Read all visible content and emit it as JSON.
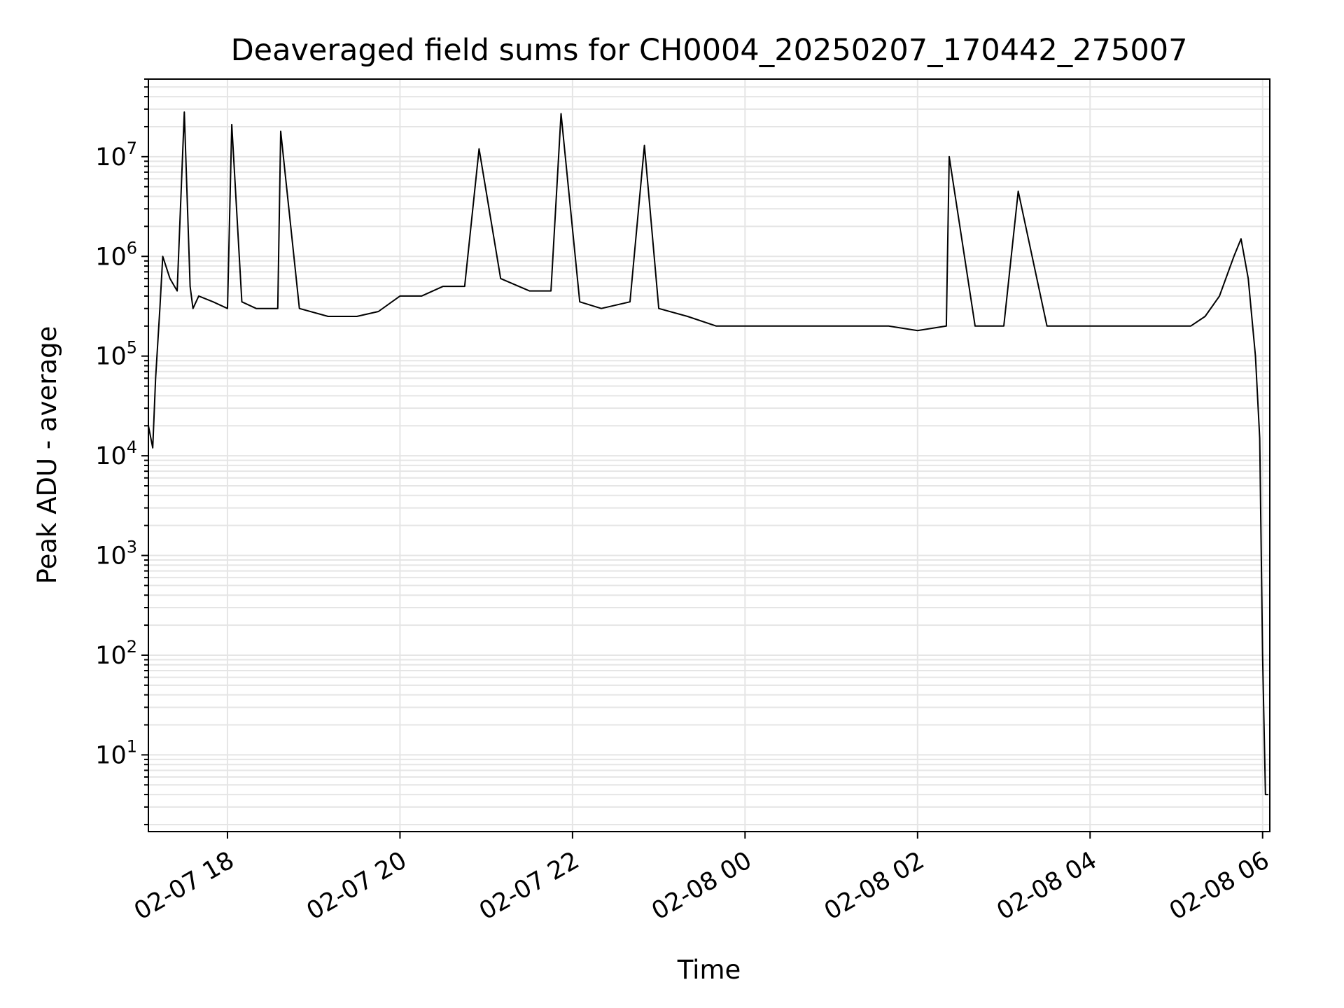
{
  "chart_data": {
    "type": "line",
    "title": "Deaveraged field sums for CH0004_20250207_170442_275007",
    "xlabel": "Time",
    "ylabel": "Peak ADU - average",
    "x_scale": "time",
    "y_scale": "log",
    "xlim": [
      "2025-02-07 17:05",
      "2025-02-08 06:05"
    ],
    "ylim": [
      1.7,
      60000000
    ],
    "grid": true,
    "legend": "none",
    "line_color": "#000000",
    "grid_color": "#e5e5e5",
    "x_ticks": [
      {
        "label": "02-07 18",
        "value": "2025-02-07 18:00"
      },
      {
        "label": "02-07 20",
        "value": "2025-02-07 20:00"
      },
      {
        "label": "02-07 22",
        "value": "2025-02-07 22:00"
      },
      {
        "label": "02-08 00",
        "value": "2025-02-08 00:00"
      },
      {
        "label": "02-08 02",
        "value": "2025-02-08 02:00"
      },
      {
        "label": "02-08 04",
        "value": "2025-02-08 04:00"
      },
      {
        "label": "02-08 06",
        "value": "2025-02-08 06:00"
      }
    ],
    "y_ticks": [
      {
        "base": "10",
        "exp": "1",
        "value": 10
      },
      {
        "base": "10",
        "exp": "2",
        "value": 100
      },
      {
        "base": "10",
        "exp": "3",
        "value": 1000
      },
      {
        "base": "10",
        "exp": "4",
        "value": 10000
      },
      {
        "base": "10",
        "exp": "5",
        "value": 100000
      },
      {
        "base": "10",
        "exp": "6",
        "value": 1000000
      },
      {
        "base": "10",
        "exp": "7",
        "value": 10000000
      }
    ],
    "series": [
      {
        "x": [
          "2025-02-07 17:05",
          "2025-02-07 17:08",
          "2025-02-07 17:10",
          "2025-02-07 17:13",
          "2025-02-07 17:15",
          "2025-02-07 17:20",
          "2025-02-07 17:25",
          "2025-02-07 17:30",
          "2025-02-07 17:34",
          "2025-02-07 17:36",
          "2025-02-07 17:40",
          "2025-02-07 17:50",
          "2025-02-07 18:00",
          "2025-02-07 18:03",
          "2025-02-07 18:10",
          "2025-02-07 18:20",
          "2025-02-07 18:35",
          "2025-02-07 18:37",
          "2025-02-07 18:50",
          "2025-02-07 19:10",
          "2025-02-07 19:30",
          "2025-02-07 19:45",
          "2025-02-07 20:00",
          "2025-02-07 20:15",
          "2025-02-07 20:30",
          "2025-02-07 20:45",
          "2025-02-07 20:55",
          "2025-02-07 21:10",
          "2025-02-07 21:30",
          "2025-02-07 21:45",
          "2025-02-07 21:52",
          "2025-02-07 22:05",
          "2025-02-07 22:20",
          "2025-02-07 22:40",
          "2025-02-07 22:50",
          "2025-02-07 23:00",
          "2025-02-07 23:20",
          "2025-02-07 23:40",
          "2025-02-08 00:00",
          "2025-02-08 00:20",
          "2025-02-08 00:40",
          "2025-02-08 01:00",
          "2025-02-08 01:20",
          "2025-02-08 01:40",
          "2025-02-08 02:00",
          "2025-02-08 02:20",
          "2025-02-08 02:22",
          "2025-02-08 02:40",
          "2025-02-08 03:00",
          "2025-02-08 03:10",
          "2025-02-08 03:30",
          "2025-02-08 03:50",
          "2025-02-08 04:10",
          "2025-02-08 04:30",
          "2025-02-08 04:50",
          "2025-02-08 05:10",
          "2025-02-08 05:20",
          "2025-02-08 05:30",
          "2025-02-08 05:40",
          "2025-02-08 05:45",
          "2025-02-08 05:50",
          "2025-02-08 05:55",
          "2025-02-08 05:58",
          "2025-02-08 06:00",
          "2025-02-08 06:02",
          "2025-02-08 06:04"
        ],
        "y": [
          20000,
          12000,
          60000,
          300000,
          1000000,
          600000,
          450000,
          28000000,
          500000,
          300000,
          400000,
          350000,
          300000,
          21000000,
          350000,
          300000,
          300000,
          18000000,
          300000,
          250000,
          250000,
          280000,
          400000,
          400000,
          500000,
          500000,
          12000000,
          600000,
          450000,
          450000,
          27000000,
          350000,
          300000,
          350000,
          13000000,
          300000,
          250000,
          200000,
          200000,
          200000,
          200000,
          200000,
          200000,
          200000,
          180000,
          200000,
          10000000,
          200000,
          200000,
          4500000,
          200000,
          200000,
          200000,
          200000,
          200000,
          200000,
          250000,
          400000,
          1000000,
          1500000,
          600000,
          100000,
          15000,
          100,
          4,
          4
        ]
      }
    ]
  }
}
